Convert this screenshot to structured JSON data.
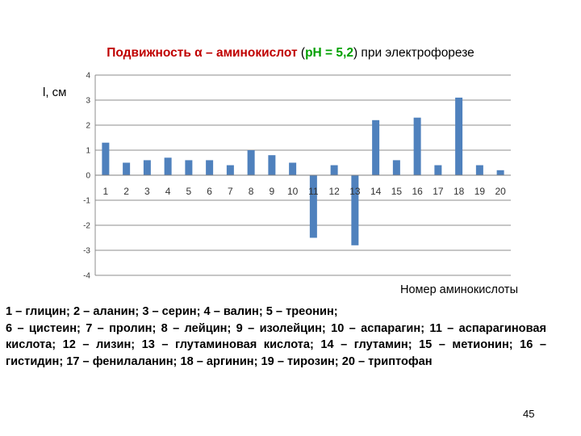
{
  "slide": {
    "title_part1": "Подвижность α – аминокислот",
    "title_part2": " (",
    "title_part3": "pH = 5,2",
    "title_part4": ")",
    "title_part5": " при электрофорезе",
    "page_number": "45"
  },
  "legend": {
    "line1": "1 – глицин; 2 – аланин; 3 – серин; 4 – валин; 5 – треонин;",
    "rest": "6 – цистеин; 7 – пролин; 8 – лейцин; 9 – изолейцин; 10 – аспарагин; 11 – аспарагиновая кислота; 12 – лизин; 13 – глутаминовая кислота; 14 – глутамин; 15 – метионин; 16 – гистидин; 17 – фенилаланин; 18 – аргинин; 19 – тирозин; 20 – триптофан"
  },
  "chart_data": {
    "type": "bar",
    "ylabel": "l, см",
    "xlabel": "Номер аминокислоты",
    "categories": [
      "1",
      "2",
      "3",
      "4",
      "5",
      "6",
      "7",
      "8",
      "9",
      "10",
      "11",
      "12",
      "13",
      "14",
      "15",
      "16",
      "17",
      "18",
      "19",
      "20"
    ],
    "values": [
      1.3,
      0.5,
      0.6,
      0.7,
      0.6,
      0.6,
      0.4,
      1.0,
      0.8,
      0.5,
      -2.5,
      0.4,
      -2.8,
      2.2,
      0.6,
      2.3,
      0.4,
      3.1,
      0.4,
      0.2
    ],
    "ylim": [
      -4,
      4
    ],
    "yticks": [
      "4",
      "3",
      "2",
      "1",
      "0",
      "-1",
      "-2",
      "-3",
      "-4"
    ],
    "grid": true,
    "bar_color": "#4f81bd"
  }
}
